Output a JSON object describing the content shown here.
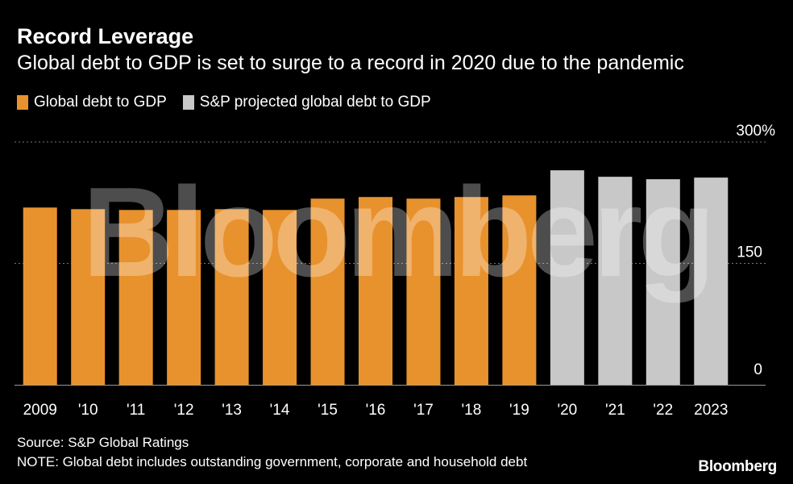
{
  "header": {
    "title": "Record Leverage",
    "subtitle": "Global debt to GDP is set to surge to a record in 2020 due to the pandemic"
  },
  "legend": [
    {
      "label": "Global debt to GDP",
      "color": "#e8922e"
    },
    {
      "label": "S&P projected global debt to GDP",
      "color": "#c8c8c8"
    }
  ],
  "watermark": "Bloomberg",
  "footer": {
    "source": "Source: S&P Global Ratings",
    "note": "NOTE: Global debt includes outstanding government, corporate and household debt",
    "brand": "Bloomberg"
  },
  "chart_data": {
    "type": "bar",
    "categories": [
      "2009",
      "'10",
      "'11",
      "'12",
      "'13",
      "'14",
      "'15",
      "'16",
      "'17",
      "'18",
      "'19",
      "'20",
      "'21",
      "'22",
      "2023"
    ],
    "series": [
      {
        "name": "Global debt to GDP",
        "color": "#e8922e",
        "values": [
          219,
          217,
          216,
          216,
          217,
          216,
          230,
          232,
          230,
          232,
          234,
          null,
          null,
          null,
          null
        ]
      },
      {
        "name": "S&P projected global debt to GDP",
        "color": "#c8c8c8",
        "values": [
          null,
          null,
          null,
          null,
          null,
          null,
          null,
          null,
          null,
          null,
          null,
          265,
          257,
          254,
          256
        ]
      }
    ],
    "yticks": [
      {
        "value": 0,
        "label": "0"
      },
      {
        "value": 150,
        "label": "150"
      },
      {
        "value": 300,
        "label": "300%"
      }
    ],
    "ylim": [
      0,
      300
    ],
    "grid": true,
    "legend_position": "top-left"
  }
}
